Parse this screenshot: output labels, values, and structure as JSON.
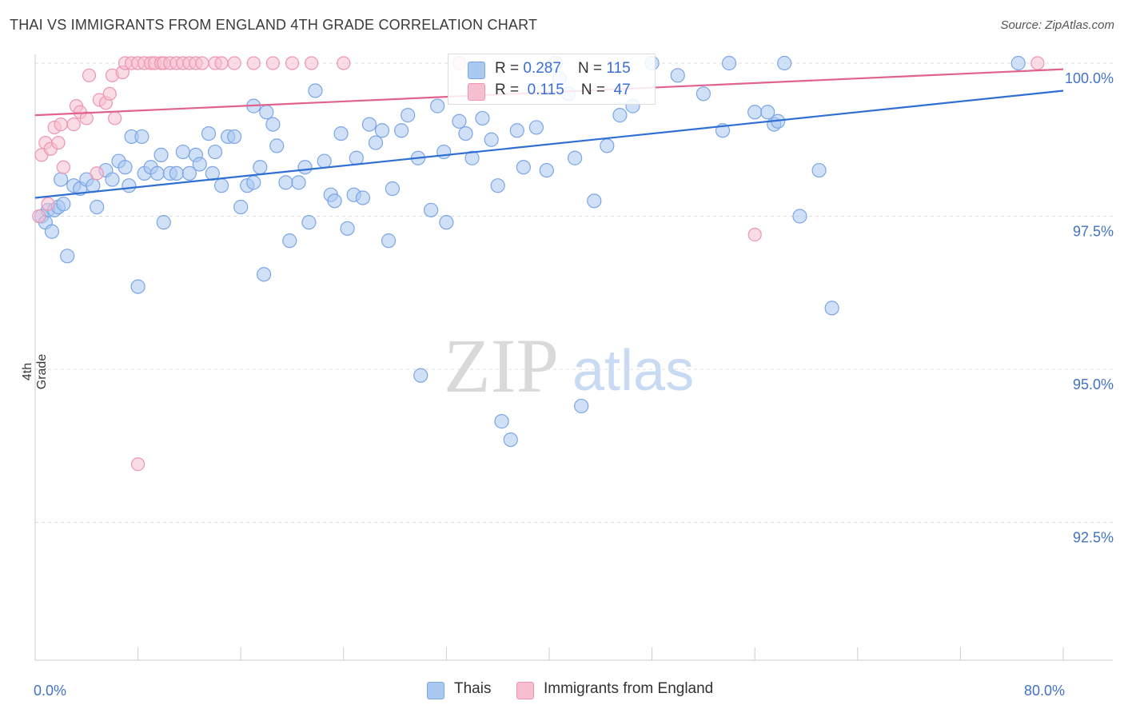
{
  "title": "THAI VS IMMIGRANTS FROM ENGLAND 4TH GRADE CORRELATION CHART",
  "source": "Source: ZipAtlas.com",
  "watermark": {
    "zip": "ZIP",
    "atlas": "atlas"
  },
  "colors": {
    "blue_fill": "#aac8f0",
    "blue_stroke": "#7ba5e6",
    "blue_line": "#2f6fd3",
    "pink_fill": "#f6bfd0",
    "pink_stroke": "#ef93b1",
    "pink_line": "#e0638d",
    "axis_label": "#4272c4",
    "grid": "#dddddd"
  },
  "legend": {
    "row1": {
      "r_label": "R = ",
      "r_value": "0.287",
      "n_label": "N = ",
      "n_value": "115"
    },
    "row2": {
      "r_label": "R = ",
      "r_value": "0.115",
      "n_label": "N = ",
      "n_value": "47"
    }
  },
  "bottom_legend": {
    "series1": "Thais",
    "series2": "Immigrants from England"
  },
  "chart_data": {
    "type": "scatter",
    "title": "THAI VS IMMIGRANTS FROM ENGLAND 4TH GRADE CORRELATION CHART",
    "xlabel": "",
    "ylabel": "4th Grade",
    "xlim": [
      0,
      80
    ],
    "ylim": [
      90.0,
      100.5
    ],
    "x_tick_labels": [
      {
        "value": 0,
        "label": "0.0%"
      },
      {
        "value": 80,
        "label": "80.0%"
      }
    ],
    "y_tick_labels": [
      {
        "value": 100.0,
        "label": "100.0%"
      },
      {
        "value": 97.5,
        "label": "97.5%"
      },
      {
        "value": 95.0,
        "label": "95.0%"
      },
      {
        "value": 92.5,
        "label": "92.5%"
      }
    ],
    "grid": "horizontal dashed",
    "legend_position": "top-center",
    "series": [
      {
        "name": "Thais",
        "color": "#aac8f0",
        "trend": {
          "x": [
            0,
            80
          ],
          "y": [
            97.8,
            99.55
          ]
        },
        "points": [
          [
            0.5,
            97.5
          ],
          [
            0.8,
            97.4
          ],
          [
            1.0,
            97.6
          ],
          [
            1.3,
            97.25
          ],
          [
            1.5,
            97.6
          ],
          [
            1.8,
            97.65
          ],
          [
            2.0,
            98.1
          ],
          [
            2.2,
            97.7
          ],
          [
            2.5,
            96.85
          ],
          [
            3.0,
            98.0
          ],
          [
            3.5,
            97.95
          ],
          [
            4.0,
            98.1
          ],
          [
            4.5,
            98.0
          ],
          [
            4.8,
            97.65
          ],
          [
            5.5,
            98.25
          ],
          [
            6.0,
            98.1
          ],
          [
            6.5,
            98.4
          ],
          [
            7.0,
            98.3
          ],
          [
            7.3,
            98.0
          ],
          [
            7.5,
            98.8
          ],
          [
            8.0,
            96.35
          ],
          [
            8.5,
            98.2
          ],
          [
            9.0,
            98.3
          ],
          [
            9.5,
            98.2
          ],
          [
            9.8,
            98.5
          ],
          [
            10.0,
            97.4
          ],
          [
            10.5,
            98.2
          ],
          [
            11.0,
            98.2
          ],
          [
            11.5,
            98.55
          ],
          [
            12.0,
            98.2
          ],
          [
            12.5,
            98.5
          ],
          [
            12.8,
            98.35
          ],
          [
            13.5,
            98.85
          ],
          [
            13.8,
            98.2
          ],
          [
            14.0,
            98.55
          ],
          [
            14.5,
            98.0
          ],
          [
            15.0,
            98.8
          ],
          [
            15.5,
            98.8
          ],
          [
            16.0,
            97.65
          ],
          [
            16.5,
            98.0
          ],
          [
            17.0,
            98.05
          ],
          [
            17.5,
            98.3
          ],
          [
            17.8,
            96.55
          ],
          [
            18.0,
            99.2
          ],
          [
            18.5,
            99.0
          ],
          [
            18.8,
            98.65
          ],
          [
            19.5,
            98.05
          ],
          [
            19.8,
            97.1
          ],
          [
            20.5,
            98.05
          ],
          [
            21.0,
            98.3
          ],
          [
            21.3,
            97.4
          ],
          [
            21.8,
            99.55
          ],
          [
            22.5,
            98.4
          ],
          [
            23.0,
            97.85
          ],
          [
            23.3,
            97.75
          ],
          [
            23.8,
            98.85
          ],
          [
            24.3,
            97.3
          ],
          [
            24.8,
            97.85
          ],
          [
            25.0,
            98.45
          ],
          [
            25.5,
            97.8
          ],
          [
            26.0,
            99.0
          ],
          [
            26.5,
            98.7
          ],
          [
            27.0,
            98.9
          ],
          [
            27.5,
            97.1
          ],
          [
            27.8,
            97.95
          ],
          [
            28.5,
            98.9
          ],
          [
            29.0,
            99.15
          ],
          [
            29.8,
            98.45
          ],
          [
            30.0,
            94.9
          ],
          [
            30.8,
            97.6
          ],
          [
            31.3,
            99.3
          ],
          [
            31.8,
            98.55
          ],
          [
            32.0,
            97.4
          ],
          [
            33.0,
            99.05
          ],
          [
            33.5,
            98.85
          ],
          [
            34.0,
            98.45
          ],
          [
            34.8,
            99.1
          ],
          [
            35.5,
            98.75
          ],
          [
            36.0,
            98.0
          ],
          [
            36.3,
            94.15
          ],
          [
            37.0,
            93.85
          ],
          [
            37.5,
            98.9
          ],
          [
            38.0,
            98.3
          ],
          [
            39.0,
            98.95
          ],
          [
            39.8,
            98.25
          ],
          [
            40.5,
            100.0
          ],
          [
            40.8,
            99.75
          ],
          [
            41.5,
            99.5
          ],
          [
            42.0,
            98.45
          ],
          [
            42.5,
            94.4
          ],
          [
            43.5,
            97.75
          ],
          [
            44.5,
            98.65
          ],
          [
            45.5,
            99.15
          ],
          [
            46.5,
            99.3
          ],
          [
            48.0,
            100.0
          ],
          [
            50.0,
            99.8
          ],
          [
            52.0,
            99.5
          ],
          [
            53.5,
            98.9
          ],
          [
            54.0,
            100.0
          ],
          [
            56.0,
            99.2
          ],
          [
            57.0,
            99.2
          ],
          [
            57.5,
            99.0
          ],
          [
            57.8,
            99.05
          ],
          [
            58.3,
            100.0
          ],
          [
            59.5,
            97.5
          ],
          [
            61.0,
            98.25
          ],
          [
            62.0,
            96.0
          ],
          [
            76.5,
            100.0
          ],
          [
            17.0,
            99.3
          ],
          [
            8.3,
            98.8
          ]
        ]
      },
      {
        "name": "Immigrants from England",
        "color": "#f6bfd0",
        "trend": {
          "x": [
            0,
            80
          ],
          "y": [
            99.15,
            99.9
          ]
        },
        "points": [
          [
            0.3,
            97.5
          ],
          [
            0.5,
            98.5
          ],
          [
            0.8,
            98.7
          ],
          [
            1.0,
            97.7
          ],
          [
            1.2,
            98.6
          ],
          [
            1.5,
            98.95
          ],
          [
            1.8,
            98.7
          ],
          [
            2.0,
            99.0
          ],
          [
            2.2,
            98.3
          ],
          [
            3.0,
            99.0
          ],
          [
            3.2,
            99.3
          ],
          [
            3.5,
            99.2
          ],
          [
            4.0,
            99.1
          ],
          [
            4.2,
            99.8
          ],
          [
            4.8,
            98.2
          ],
          [
            5.0,
            99.4
          ],
          [
            5.5,
            99.35
          ],
          [
            5.8,
            99.5
          ],
          [
            6.0,
            99.8
          ],
          [
            6.2,
            99.1
          ],
          [
            6.8,
            99.85
          ],
          [
            7.0,
            100.0
          ],
          [
            7.5,
            100.0
          ],
          [
            8.0,
            100.0
          ],
          [
            8.5,
            100.0
          ],
          [
            9.0,
            100.0
          ],
          [
            9.3,
            100.0
          ],
          [
            9.8,
            100.0
          ],
          [
            10.0,
            100.0
          ],
          [
            10.5,
            100.0
          ],
          [
            11.0,
            100.0
          ],
          [
            11.5,
            100.0
          ],
          [
            12.0,
            100.0
          ],
          [
            12.5,
            100.0
          ],
          [
            13.0,
            100.0
          ],
          [
            14.0,
            100.0
          ],
          [
            14.5,
            100.0
          ],
          [
            15.5,
            100.0
          ],
          [
            17.0,
            100.0
          ],
          [
            18.5,
            100.0
          ],
          [
            20.0,
            100.0
          ],
          [
            21.5,
            100.0
          ],
          [
            24.0,
            100.0
          ],
          [
            33.0,
            100.0
          ],
          [
            56.0,
            97.2
          ],
          [
            78.0,
            100.0
          ],
          [
            8.0,
            93.45
          ]
        ]
      }
    ]
  }
}
